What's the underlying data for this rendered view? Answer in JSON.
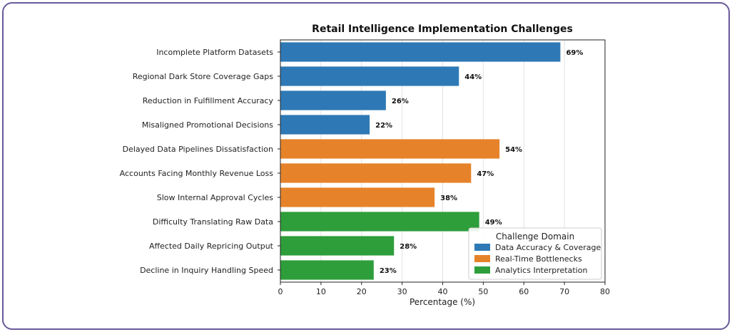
{
  "chart_data": {
    "type": "bar",
    "orientation": "horizontal",
    "title": "Retail Intelligence Implementation Challenges",
    "xlabel": "Percentage (%)",
    "ylabel": "",
    "xlim": [
      0,
      80
    ],
    "xticks": [
      0,
      10,
      20,
      30,
      40,
      50,
      60,
      70,
      80
    ],
    "grid": true,
    "categories": [
      "Incomplete Platform Datasets",
      "Regional Dark Store Coverage Gaps",
      "Reduction in Fulfillment Accuracy",
      "Misaligned Promotional Decisions",
      "Delayed Data Pipelines Dissatisfaction",
      "Accounts Facing Monthly Revenue Loss",
      "Slow Internal Approval Cycles",
      "Difficulty Translating Raw Data",
      "Affected Daily Repricing Output",
      "Decline in Inquiry Handling Speed"
    ],
    "values": [
      69,
      44,
      26,
      22,
      54,
      47,
      38,
      49,
      28,
      23
    ],
    "data_labels": [
      "69%",
      "44%",
      "26%",
      "22%",
      "54%",
      "47%",
      "38%",
      "49%",
      "28%",
      "23%"
    ],
    "groups": [
      0,
      0,
      0,
      0,
      1,
      1,
      1,
      2,
      2,
      2
    ],
    "legend": {
      "title": "Challenge Domain",
      "placement": "lower-right",
      "entries": [
        {
          "name": "Data Accuracy & Coverage",
          "color": "#2e79b5"
        },
        {
          "name": "Real-Time Bottlenecks",
          "color": "#e6832a"
        },
        {
          "name": "Analytics Interpretation",
          "color": "#2e9e3b"
        }
      ]
    }
  }
}
